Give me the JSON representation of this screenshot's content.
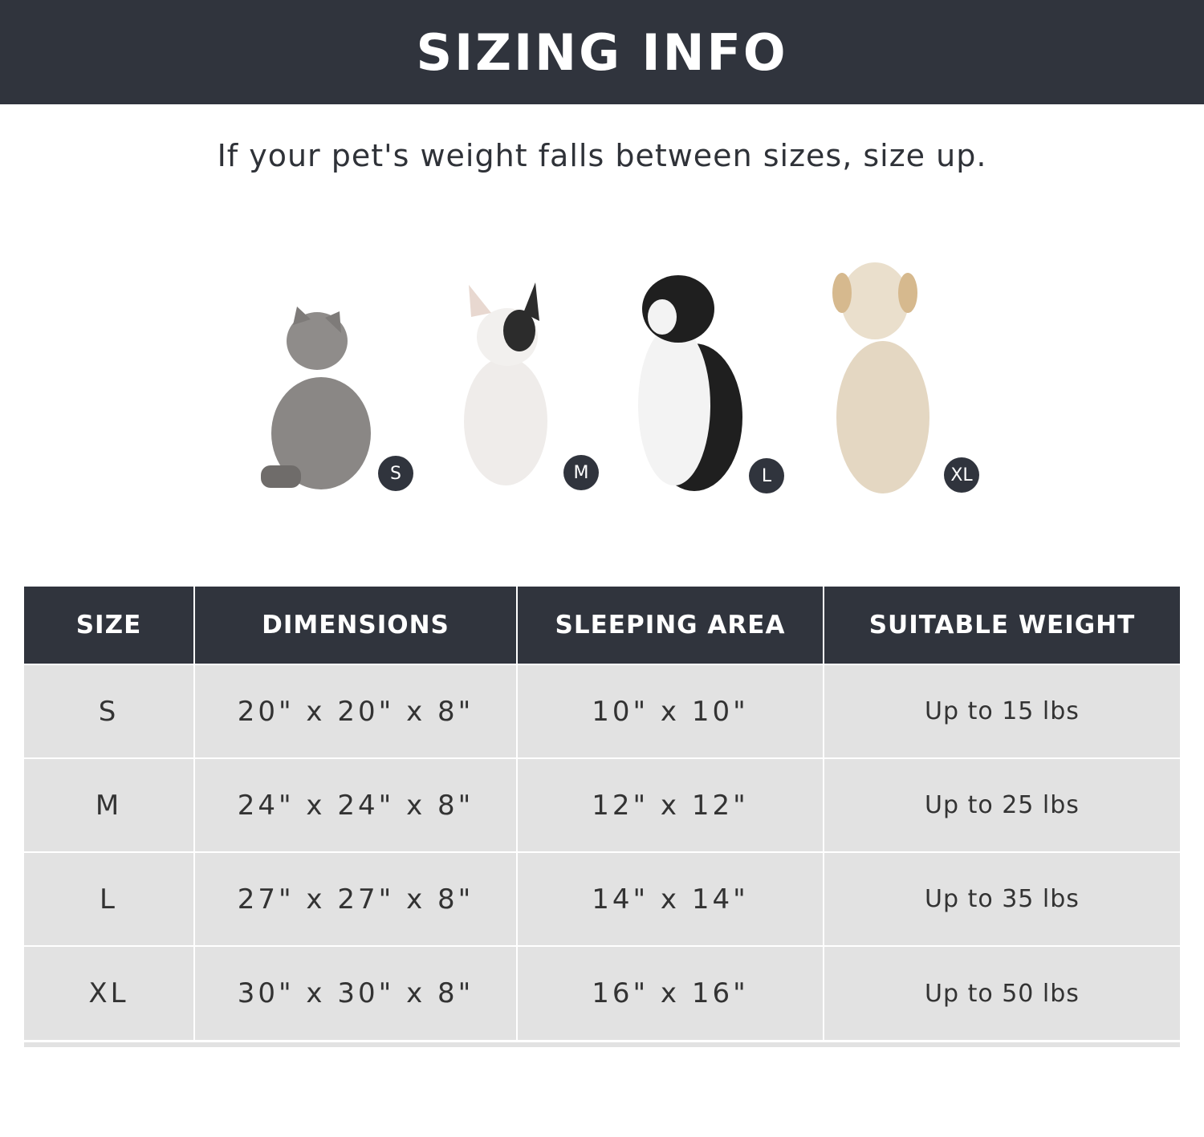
{
  "banner": {
    "title": "SIZING INFO"
  },
  "subtitle": "If your pet's weight falls between sizes, size up.",
  "pets": [
    {
      "animal": "cat",
      "badge": "S",
      "color": "#8a8785"
    },
    {
      "animal": "french-bulldog",
      "badge": "M",
      "color": "#efecea"
    },
    {
      "animal": "border-collie",
      "badge": "L",
      "color": "#1f1f1f"
    },
    {
      "animal": "labrador",
      "badge": "XL",
      "color": "#e4d7c2"
    }
  ],
  "colors": {
    "header": "#30343d",
    "row": "#e2e2e2"
  },
  "table": {
    "headers": [
      "SIZE",
      "DIMENSIONS",
      "SLEEPING AREA",
      "SUITABLE WEIGHT"
    ],
    "rows": [
      [
        "S",
        "20\" x 20\" x 8\"",
        "10\" x 10\"",
        "Up to 15 lbs"
      ],
      [
        "M",
        "24\" x 24\" x 8\"",
        "12\" x 12\"",
        "Up to 25 lbs"
      ],
      [
        "L",
        "27\" x 27\" x 8\"",
        "14\" x 14\"",
        "Up to 35 lbs"
      ],
      [
        "XL",
        "30\" x 30\" x 8\"",
        "16\" x 16\"",
        "Up to 50 lbs"
      ]
    ]
  }
}
